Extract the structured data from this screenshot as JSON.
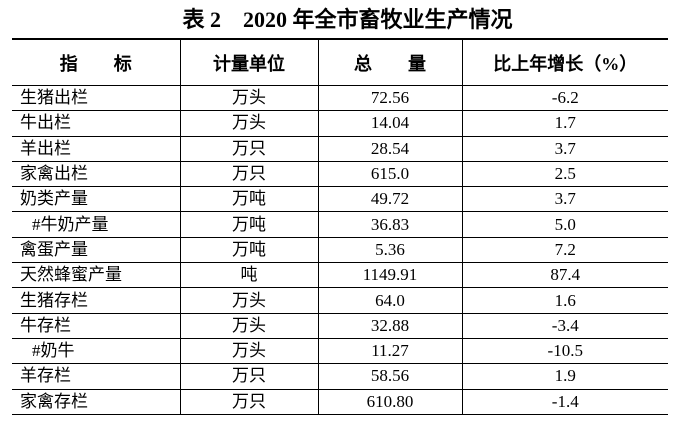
{
  "title": "表 2　2020 年全市畜牧业生产情况",
  "table": {
    "header": [
      "指　　标",
      "计量单位",
      "总　　量",
      "比上年增长（%）"
    ],
    "rows": [
      [
        "生猪出栏",
        "万头",
        "72.56",
        "-6.2"
      ],
      [
        "牛出栏",
        "万头",
        "14.04",
        "1.7"
      ],
      [
        "羊出栏",
        "万只",
        "28.54",
        "3.7"
      ],
      [
        "家禽出栏",
        "万只",
        "615.0",
        "2.5"
      ],
      [
        "奶类产量",
        "万吨",
        "49.72",
        "3.7"
      ],
      [
        "#牛奶产量",
        "万吨",
        "36.83",
        "5.0"
      ],
      [
        "禽蛋产量",
        "万吨",
        "5.36",
        "7.2"
      ],
      [
        "天然蜂蜜产量",
        "吨",
        "1149.91",
        "87.4"
      ],
      [
        "生猪存栏",
        "万头",
        "64.0",
        "1.6"
      ],
      [
        "牛存栏",
        "万头",
        "32.88",
        "-3.4"
      ],
      [
        "#奶牛",
        "万头",
        "11.27",
        "-10.5"
      ],
      [
        "羊存栏",
        "万只",
        "58.56",
        "1.9"
      ],
      [
        "家禽存栏",
        "万只",
        "610.80",
        "-1.4"
      ]
    ]
  }
}
